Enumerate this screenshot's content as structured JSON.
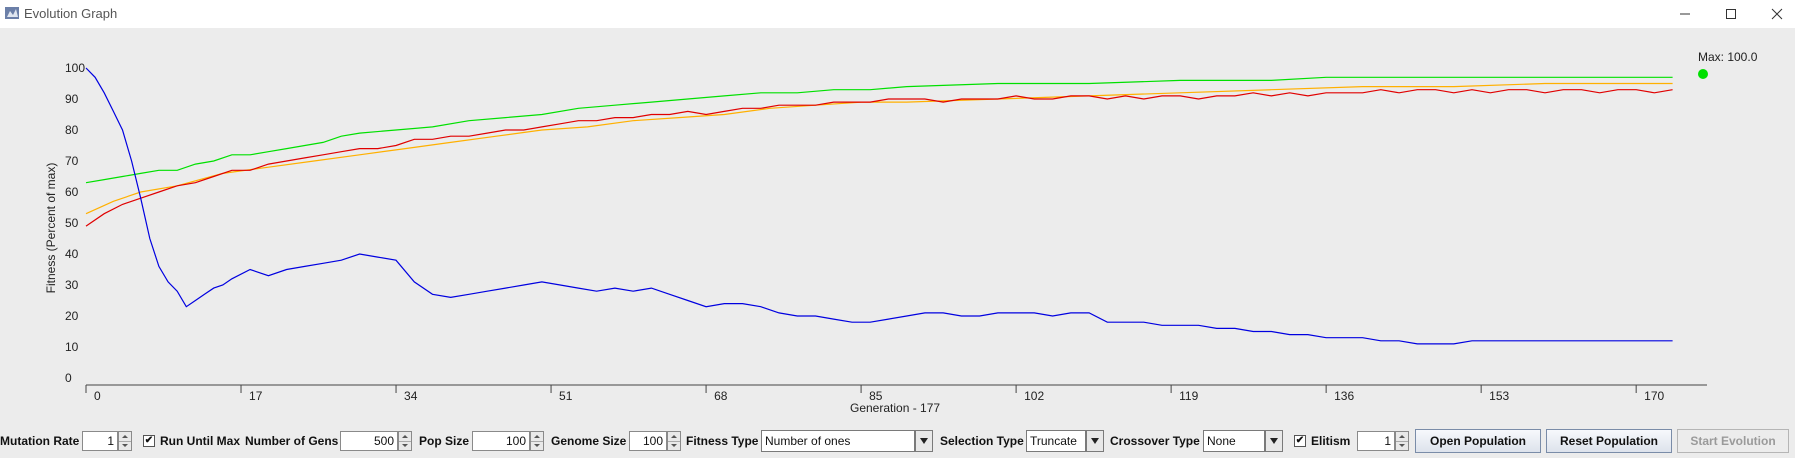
{
  "window": {
    "title": "Evolution Graph",
    "icon": "java-app-icon",
    "controls": [
      "minimize-icon",
      "maximize-icon",
      "close-icon"
    ]
  },
  "chart_data": {
    "type": "line",
    "xlabel": "Generation  - 177",
    "ylabel": "Fitness (Percent of max)",
    "xlim": [
      0,
      177
    ],
    "ylim": [
      0,
      100
    ],
    "x_ticks": [
      0,
      17,
      34,
      51,
      68,
      85,
      102,
      119,
      136,
      153,
      170
    ],
    "y_ticks": [
      0,
      10,
      20,
      30,
      40,
      50,
      60,
      70,
      80,
      90,
      100
    ],
    "grid": false,
    "annotation": "Max: 100.0",
    "annotation_point": [
      177,
      100
    ],
    "annotation_color": "#00e000",
    "series": [
      {
        "color": "#00e000",
        "x": [
          0,
          2,
          4,
          6,
          8,
          10,
          12,
          14,
          16,
          18,
          20,
          22,
          24,
          26,
          28,
          30,
          34,
          38,
          42,
          46,
          50,
          54,
          58,
          62,
          66,
          70,
          74,
          78,
          82,
          86,
          90,
          100,
          110,
          120,
          125,
          130,
          136,
          140,
          150,
          160,
          170,
          174
        ],
        "values": [
          63,
          64,
          65,
          66,
          67,
          67,
          69,
          70,
          72,
          72,
          73,
          74,
          75,
          76,
          78,
          79,
          80,
          81,
          83,
          84,
          85,
          87,
          88,
          89,
          90,
          91,
          92,
          92,
          93,
          93,
          94,
          95,
          95,
          96,
          96,
          96,
          97,
          97,
          97,
          97,
          97,
          97
        ]
      },
      {
        "color": "#ffb000",
        "x": [
          0,
          3,
          6,
          10,
          15,
          20,
          25,
          30,
          35,
          40,
          45,
          50,
          55,
          60,
          65,
          70,
          75,
          80,
          85,
          90,
          100,
          110,
          120,
          130,
          140,
          150,
          160,
          170,
          174
        ],
        "values": [
          53,
          57,
          60,
          62,
          66,
          68,
          70,
          72,
          74,
          76,
          78,
          80,
          81,
          83,
          84,
          85,
          87,
          88,
          89,
          89,
          90,
          91,
          92,
          93,
          94,
          94,
          95,
          95,
          95
        ]
      },
      {
        "color": "#e00000",
        "x": [
          0,
          2,
          4,
          6,
          8,
          10,
          12,
          14,
          16,
          18,
          20,
          22,
          24,
          26,
          28,
          30,
          32,
          34,
          36,
          38,
          40,
          42,
          44,
          46,
          48,
          50,
          52,
          54,
          56,
          58,
          60,
          62,
          64,
          66,
          68,
          70,
          72,
          74,
          76,
          78,
          80,
          82,
          84,
          86,
          88,
          90,
          92,
          94,
          96,
          98,
          100,
          102,
          104,
          106,
          108,
          110,
          112,
          114,
          116,
          118,
          120,
          122,
          124,
          126,
          128,
          130,
          132,
          134,
          136,
          138,
          140,
          142,
          144,
          146,
          148,
          150,
          152,
          154,
          156,
          158,
          160,
          162,
          164,
          166,
          168,
          170,
          172,
          174
        ],
        "values": [
          49,
          53,
          56,
          58,
          60,
          62,
          63,
          65,
          67,
          67,
          69,
          70,
          71,
          72,
          73,
          74,
          74,
          75,
          77,
          77,
          78,
          78,
          79,
          80,
          80,
          81,
          82,
          83,
          83,
          84,
          84,
          85,
          85,
          86,
          85,
          86,
          87,
          87,
          88,
          88,
          88,
          89,
          89,
          89,
          90,
          90,
          90,
          89,
          90,
          90,
          90,
          91,
          90,
          90,
          91,
          91,
          90,
          91,
          90,
          91,
          91,
          90,
          91,
          91,
          92,
          91,
          92,
          91,
          92,
          92,
          92,
          93,
          92,
          93,
          93,
          92,
          93,
          92,
          93,
          93,
          92,
          93,
          93,
          92,
          93,
          93,
          92,
          93
        ]
      },
      {
        "color": "#0000e0",
        "x": [
          0,
          1,
          2,
          3,
          4,
          5,
          6,
          7,
          8,
          9,
          10,
          11,
          12,
          13,
          14,
          15,
          16,
          18,
          20,
          22,
          24,
          26,
          28,
          30,
          32,
          34,
          36,
          38,
          40,
          42,
          44,
          46,
          48,
          50,
          52,
          54,
          56,
          58,
          60,
          62,
          64,
          66,
          68,
          70,
          72,
          74,
          76,
          78,
          80,
          82,
          84,
          86,
          88,
          90,
          92,
          94,
          96,
          98,
          100,
          102,
          104,
          106,
          108,
          110,
          112,
          114,
          116,
          118,
          120,
          122,
          124,
          126,
          128,
          130,
          132,
          134,
          136,
          138,
          140,
          142,
          144,
          146,
          148,
          150,
          152,
          154,
          156,
          158,
          160,
          162,
          164,
          166,
          168,
          170,
          172,
          174
        ],
        "values": [
          100,
          97,
          92,
          86,
          80,
          70,
          58,
          45,
          36,
          31,
          28,
          23,
          25,
          27,
          29,
          30,
          32,
          35,
          33,
          35,
          36,
          37,
          38,
          40,
          39,
          38,
          31,
          27,
          26,
          27,
          28,
          29,
          30,
          31,
          30,
          29,
          28,
          29,
          28,
          29,
          27,
          25,
          23,
          24,
          24,
          23,
          21,
          20,
          20,
          19,
          18,
          18,
          19,
          20,
          21,
          21,
          20,
          20,
          21,
          21,
          21,
          20,
          21,
          21,
          18,
          18,
          18,
          17,
          17,
          17,
          16,
          16,
          15,
          15,
          14,
          14,
          13,
          13,
          13,
          12,
          12,
          11,
          11,
          11,
          12,
          12,
          12,
          12,
          12,
          12,
          12,
          12,
          12,
          12,
          12,
          12
        ]
      }
    ]
  },
  "controls": {
    "mutation_rate_label": "Mutation Rate",
    "mutation_rate_value": "1",
    "run_until_max_label": "Run Until Max",
    "run_until_max_checked": "✔",
    "num_gens_label": "Number of Gens",
    "num_gens_value": "500",
    "pop_size_label": "Pop Size",
    "pop_size_value": "100",
    "genome_size_label": "Genome Size",
    "genome_size_value": "100",
    "fitness_type_label": "Fitness Type",
    "fitness_type_value": "Number of ones",
    "selection_type_label": "Selection Type",
    "selection_type_value": "Truncate",
    "crossover_type_label": "Crossover Type",
    "crossover_type_value": "None",
    "elitism_label": "Elitism",
    "elitism_checked": "✔",
    "elitism_value": "1",
    "open_population_label": "Open Population",
    "reset_population_label": "Reset Population",
    "start_evolution_label": "Start Evolution"
  }
}
